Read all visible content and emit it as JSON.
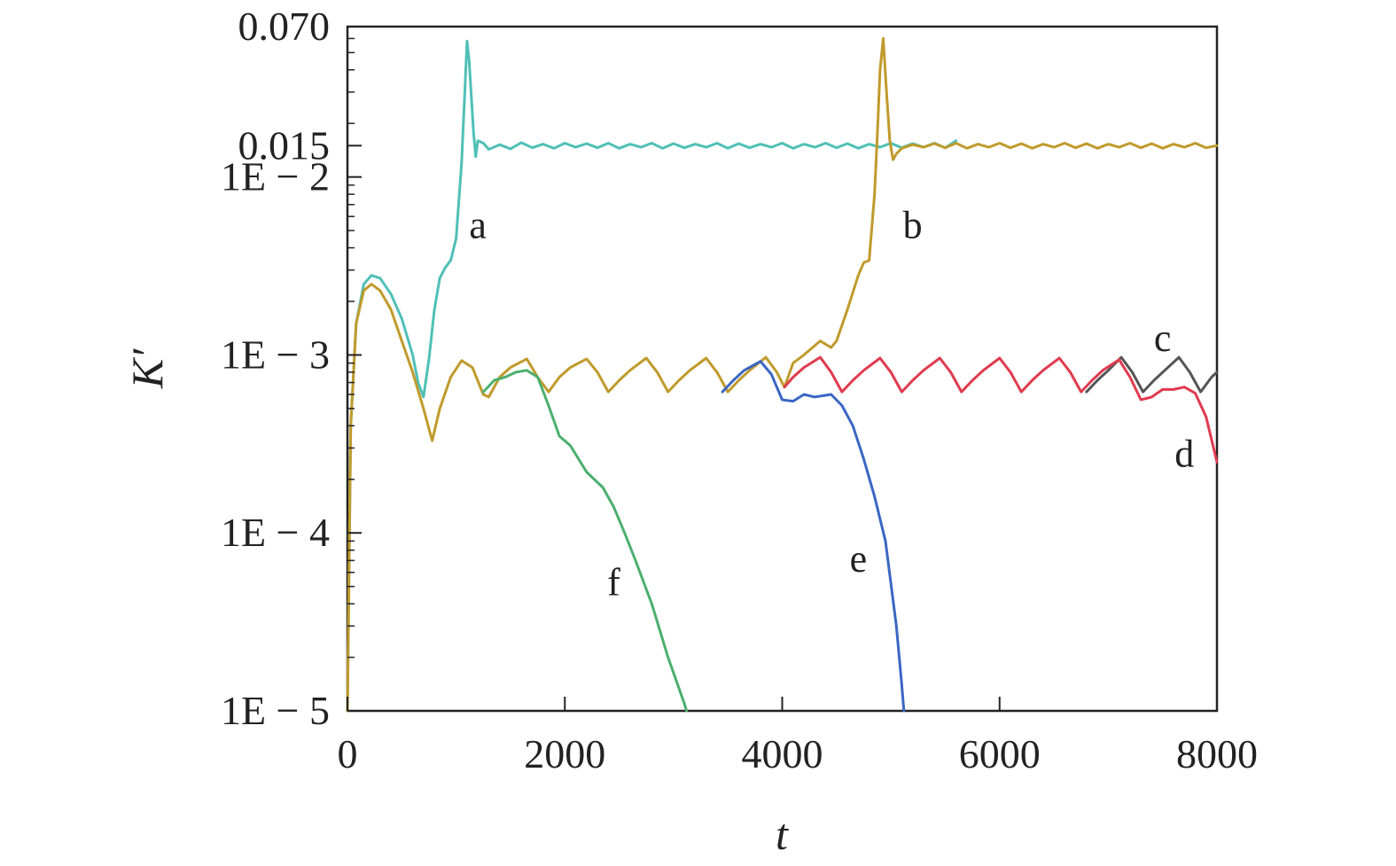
{
  "chart_data": {
    "type": "line",
    "title": "",
    "xlabel": "t",
    "ylabel": "K′",
    "x_scale": "linear",
    "y_scale": "log",
    "xlim": [
      0,
      8000
    ],
    "ylim": [
      1e-05,
      0.07
    ],
    "x_ticks": [
      {
        "value": 0,
        "label": "0"
      },
      {
        "value": 2000,
        "label": "2000"
      },
      {
        "value": 4000,
        "label": "4000"
      },
      {
        "value": 6000,
        "label": "6000"
      },
      {
        "value": 8000,
        "label": "8000"
      }
    ],
    "y_ticks": [
      {
        "value": 0.07,
        "label": "0.070"
      },
      {
        "value": 0.015,
        "label": "0.015"
      },
      {
        "value": 0.01,
        "label": "1E − 2"
      },
      {
        "value": 0.001,
        "label": "1E − 3"
      },
      {
        "value": 0.0001,
        "label": "1E − 4"
      },
      {
        "value": 1e-05,
        "label": "1E − 5"
      }
    ],
    "grid": false,
    "legend": "none",
    "series": [
      {
        "label": "a",
        "color": "#4fc0b6",
        "label_pos": {
          "x": 1200,
          "y": 0.0054
        },
        "points": [
          [
            0,
            1e-05
          ],
          [
            30,
            0.0004
          ],
          [
            80,
            0.0015
          ],
          [
            150,
            0.0025
          ],
          [
            220,
            0.0028
          ],
          [
            300,
            0.0027
          ],
          [
            400,
            0.0022
          ],
          [
            500,
            0.0016
          ],
          [
            600,
            0.001
          ],
          [
            650,
            0.0007
          ],
          [
            700,
            0.00058
          ],
          [
            750,
            0.00095
          ],
          [
            800,
            0.0018
          ],
          [
            850,
            0.0027
          ],
          [
            900,
            0.0031
          ],
          [
            950,
            0.0034
          ],
          [
            1000,
            0.0045
          ],
          [
            1050,
            0.012
          ],
          [
            1080,
            0.03
          ],
          [
            1100,
            0.058
          ],
          [
            1120,
            0.045
          ],
          [
            1160,
            0.018
          ],
          [
            1180,
            0.013
          ],
          [
            1200,
            0.016
          ],
          [
            1250,
            0.0155
          ],
          [
            1300,
            0.0143
          ],
          [
            1400,
            0.0152
          ],
          [
            1500,
            0.0144
          ],
          [
            1600,
            0.0156
          ],
          [
            1700,
            0.0146
          ],
          [
            1800,
            0.0153
          ],
          [
            1900,
            0.0145
          ],
          [
            2000,
            0.0155
          ],
          [
            2100,
            0.0147
          ],
          [
            2200,
            0.0154
          ],
          [
            2300,
            0.0146
          ],
          [
            2400,
            0.0155
          ],
          [
            2500,
            0.0145
          ],
          [
            2600,
            0.0153
          ],
          [
            2700,
            0.0147
          ],
          [
            2800,
            0.0155
          ],
          [
            2900,
            0.0145
          ],
          [
            3000,
            0.0154
          ],
          [
            3100,
            0.0146
          ],
          [
            3200,
            0.0153
          ],
          [
            3300,
            0.0147
          ],
          [
            3400,
            0.0155
          ],
          [
            3500,
            0.0145
          ],
          [
            3600,
            0.0154
          ],
          [
            3700,
            0.0146
          ],
          [
            3800,
            0.0153
          ],
          [
            3900,
            0.0147
          ],
          [
            4000,
            0.0155
          ],
          [
            4100,
            0.0145
          ],
          [
            4200,
            0.0153
          ],
          [
            4300,
            0.0147
          ],
          [
            4400,
            0.0155
          ],
          [
            4500,
            0.0146
          ],
          [
            4600,
            0.0154
          ],
          [
            4700,
            0.0145
          ],
          [
            4800,
            0.0153
          ],
          [
            4900,
            0.0147
          ],
          [
            5000,
            0.0155
          ],
          [
            5100,
            0.0146
          ],
          [
            5200,
            0.0154
          ],
          [
            5300,
            0.0147
          ],
          [
            5400,
            0.0155
          ],
          [
            5500,
            0.0146
          ],
          [
            5600,
            0.016
          ]
        ]
      },
      {
        "label": "b",
        "color": "#c09a2b",
        "label_pos": {
          "x": 5200,
          "y": 0.0054
        },
        "points": [
          [
            0,
            1e-05
          ],
          [
            30,
            0.0004
          ],
          [
            80,
            0.0015
          ],
          [
            150,
            0.0023
          ],
          [
            220,
            0.0025
          ],
          [
            300,
            0.0023
          ],
          [
            400,
            0.0018
          ],
          [
            500,
            0.0012
          ],
          [
            600,
            0.0008
          ],
          [
            700,
            0.0005
          ],
          [
            780,
            0.00033
          ],
          [
            850,
            0.0005
          ],
          [
            950,
            0.00075
          ],
          [
            1050,
            0.00093
          ],
          [
            1150,
            0.00085
          ],
          [
            1250,
            0.0006
          ],
          [
            1300,
            0.00058
          ],
          [
            1400,
            0.00075
          ],
          [
            1500,
            0.00085
          ],
          [
            1650,
            0.00095
          ],
          [
            1750,
            0.00075
          ],
          [
            1850,
            0.00062
          ],
          [
            1950,
            0.00075
          ],
          [
            2050,
            0.00085
          ],
          [
            2200,
            0.00095
          ],
          [
            2300,
            0.0008
          ],
          [
            2400,
            0.00062
          ],
          [
            2500,
            0.00072
          ],
          [
            2600,
            0.00082
          ],
          [
            2750,
            0.00096
          ],
          [
            2850,
            0.0008
          ],
          [
            2950,
            0.00062
          ],
          [
            3050,
            0.00072
          ],
          [
            3150,
            0.00082
          ],
          [
            3300,
            0.00096
          ],
          [
            3400,
            0.0008
          ],
          [
            3500,
            0.00062
          ],
          [
            3600,
            0.00072
          ],
          [
            3700,
            0.00082
          ],
          [
            3850,
            0.00097
          ],
          [
            3950,
            0.0008
          ],
          [
            4020,
            0.00066
          ],
          [
            4100,
            0.0009
          ],
          [
            4200,
            0.001
          ],
          [
            4350,
            0.0012
          ],
          [
            4450,
            0.0011
          ],
          [
            4500,
            0.0012
          ],
          [
            4600,
            0.0018
          ],
          [
            4700,
            0.0028
          ],
          [
            4750,
            0.0033
          ],
          [
            4800,
            0.0034
          ],
          [
            4850,
            0.008
          ],
          [
            4880,
            0.02
          ],
          [
            4900,
            0.04
          ],
          [
            4930,
            0.06
          ],
          [
            4960,
            0.03
          ],
          [
            4990,
            0.016
          ],
          [
            5020,
            0.0125
          ],
          [
            5050,
            0.0135
          ],
          [
            5100,
            0.0145
          ],
          [
            5200,
            0.0152
          ],
          [
            5300,
            0.0147
          ],
          [
            5400,
            0.0154
          ],
          [
            5500,
            0.0146
          ],
          [
            5600,
            0.0155
          ],
          [
            5700,
            0.0145
          ],
          [
            5800,
            0.0153
          ],
          [
            5900,
            0.0147
          ],
          [
            6000,
            0.0155
          ],
          [
            6100,
            0.0146
          ],
          [
            6200,
            0.0154
          ],
          [
            6300,
            0.0145
          ],
          [
            6400,
            0.0153
          ],
          [
            6500,
            0.0147
          ],
          [
            6600,
            0.0155
          ],
          [
            6700,
            0.0146
          ],
          [
            6800,
            0.0154
          ],
          [
            6900,
            0.0145
          ],
          [
            7000,
            0.0153
          ],
          [
            7100,
            0.0147
          ],
          [
            7200,
            0.0155
          ],
          [
            7300,
            0.0146
          ],
          [
            7400,
            0.0154
          ],
          [
            7500,
            0.0145
          ],
          [
            7600,
            0.0153
          ],
          [
            7700,
            0.0147
          ],
          [
            7800,
            0.0155
          ],
          [
            7900,
            0.0146
          ],
          [
            8000,
            0.015
          ]
        ]
      },
      {
        "label": "c",
        "color": "#555555",
        "label_pos": {
          "x": 7500,
          "y": 0.00125
        },
        "points": [
          [
            6800,
            0.00062
          ],
          [
            6900,
            0.00072
          ],
          [
            7000,
            0.00082
          ],
          [
            7120,
            0.00097
          ],
          [
            7220,
            0.0008
          ],
          [
            7320,
            0.00062
          ],
          [
            7420,
            0.00072
          ],
          [
            7520,
            0.00082
          ],
          [
            7650,
            0.00097
          ],
          [
            7750,
            0.0008
          ],
          [
            7850,
            0.00062
          ],
          [
            7950,
            0.00075
          ],
          [
            8000,
            0.0008
          ]
        ]
      },
      {
        "label": "d",
        "color": "#e03a4e",
        "label_pos": {
          "x": 7700,
          "y": 0.00028
        },
        "points": [
          [
            4020,
            0.00066
          ],
          [
            4100,
            0.00075
          ],
          [
            4200,
            0.00085
          ],
          [
            4350,
            0.00097
          ],
          [
            4450,
            0.0008
          ],
          [
            4550,
            0.00062
          ],
          [
            4650,
            0.00072
          ],
          [
            4750,
            0.00082
          ],
          [
            4900,
            0.00096
          ],
          [
            5000,
            0.0008
          ],
          [
            5100,
            0.00062
          ],
          [
            5200,
            0.00072
          ],
          [
            5300,
            0.00082
          ],
          [
            5450,
            0.00096
          ],
          [
            5550,
            0.0008
          ],
          [
            5650,
            0.00062
          ],
          [
            5750,
            0.00072
          ],
          [
            5850,
            0.00082
          ],
          [
            6000,
            0.00096
          ],
          [
            6100,
            0.0008
          ],
          [
            6200,
            0.00062
          ],
          [
            6300,
            0.00072
          ],
          [
            6400,
            0.00082
          ],
          [
            6550,
            0.00096
          ],
          [
            6650,
            0.0008
          ],
          [
            6750,
            0.00062
          ],
          [
            6850,
            0.00072
          ],
          [
            6950,
            0.00082
          ],
          [
            7100,
            0.00094
          ],
          [
            7200,
            0.00075
          ],
          [
            7300,
            0.00056
          ],
          [
            7400,
            0.00058
          ],
          [
            7500,
            0.00064
          ],
          [
            7600,
            0.00064
          ],
          [
            7700,
            0.00066
          ],
          [
            7800,
            0.00061
          ],
          [
            7900,
            0.00045
          ],
          [
            8000,
            0.00025
          ]
        ]
      },
      {
        "label": "e",
        "color": "#3a66c4",
        "label_pos": {
          "x": 4700,
          "y": 7.2e-05
        },
        "points": [
          [
            3450,
            0.00062
          ],
          [
            3550,
            0.00072
          ],
          [
            3650,
            0.00082
          ],
          [
            3800,
            0.00092
          ],
          [
            3900,
            0.00078
          ],
          [
            4000,
            0.00056
          ],
          [
            4100,
            0.00055
          ],
          [
            4200,
            0.0006
          ],
          [
            4300,
            0.00058
          ],
          [
            4450,
            0.0006
          ],
          [
            4550,
            0.00052
          ],
          [
            4650,
            0.0004
          ],
          [
            4750,
            0.00026
          ],
          [
            4850,
            0.00016
          ],
          [
            4950,
            9e-05
          ],
          [
            5050,
            3e-05
          ],
          [
            5100,
            1.4e-05
          ],
          [
            5120,
            1e-05
          ]
        ]
      },
      {
        "label": "f",
        "color": "#4caf6e",
        "label_pos": {
          "x": 2450,
          "y": 5.3e-05
        },
        "points": [
          [
            1250,
            0.00062
          ],
          [
            1350,
            0.00072
          ],
          [
            1450,
            0.00075
          ],
          [
            1550,
            0.0008
          ],
          [
            1650,
            0.00082
          ],
          [
            1750,
            0.00075
          ],
          [
            1850,
            0.00052
          ],
          [
            1950,
            0.00035
          ],
          [
            2050,
            0.00031
          ],
          [
            2200,
            0.00022
          ],
          [
            2350,
            0.00018
          ],
          [
            2450,
            0.00014
          ],
          [
            2550,
            0.0001
          ],
          [
            2650,
            7e-05
          ],
          [
            2800,
            4e-05
          ],
          [
            2950,
            2e-05
          ],
          [
            3100,
            1.1e-05
          ],
          [
            3120,
            1e-05
          ]
        ]
      }
    ]
  }
}
